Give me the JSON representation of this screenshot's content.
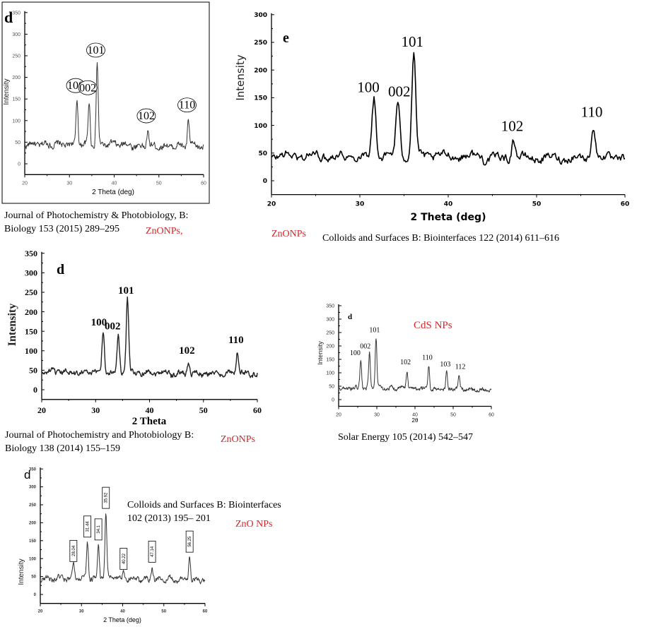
{
  "chart_data": [
    {
      "id": "A",
      "type": "line",
      "panel_letter": "d",
      "xlabel": "2 Theta (deg)",
      "ylabel": "Intensity",
      "xlim": [
        20,
        60
      ],
      "ylim": [
        -25,
        350
      ],
      "xticks": [
        20,
        30,
        40,
        50,
        60
      ],
      "yticks": [
        0,
        50,
        100,
        150,
        200,
        250,
        300,
        350
      ],
      "baseline": 45,
      "peaks": [
        {
          "x": 31.7,
          "y": 150,
          "label": "100"
        },
        {
          "x": 34.4,
          "y": 145,
          "label": "002"
        },
        {
          "x": 36.2,
          "y": 232,
          "label": "101"
        },
        {
          "x": 47.5,
          "y": 80,
          "label": "102"
        },
        {
          "x": 56.6,
          "y": 105,
          "label": "110"
        }
      ],
      "caption": [
        "Journal of Photochemistry & Photobiology, B:",
        "Biology 153 (2015) 289–295"
      ],
      "material": "ZnONPs,"
    },
    {
      "id": "B",
      "type": "line",
      "panel_letter": "e",
      "xlabel": "2 Theta (deg)",
      "ylabel": "Intensity",
      "xlim": [
        20,
        60
      ],
      "ylim": [
        -25,
        300
      ],
      "xticks": [
        20,
        30,
        40,
        50,
        60
      ],
      "yticks": [
        0,
        50,
        100,
        150,
        200,
        250,
        300
      ],
      "baseline": 45,
      "peaks": [
        {
          "x": 31.6,
          "y": 150,
          "label": "100"
        },
        {
          "x": 34.3,
          "y": 142,
          "label": "002"
        },
        {
          "x": 36.1,
          "y": 232,
          "label": "101"
        },
        {
          "x": 47.4,
          "y": 80,
          "label": "102"
        },
        {
          "x": 56.4,
          "y": 105,
          "label": "110"
        }
      ],
      "caption": [
        "Colloids and Surfaces B: Biointerfaces 122 (2014) 611–616"
      ],
      "material": "ZnONPs"
    },
    {
      "id": "C",
      "type": "line",
      "panel_letter": "d",
      "xlabel": "2 Theta",
      "ylabel": "Intensity",
      "xlim": [
        20,
        60
      ],
      "ylim": [
        -25,
        350
      ],
      "xticks": [
        20,
        30,
        40,
        50,
        60
      ],
      "yticks": [
        0,
        50,
        100,
        150,
        200,
        250,
        300,
        350
      ],
      "baseline": 45,
      "peaks": [
        {
          "x": 31.4,
          "y": 150,
          "label": "100"
        },
        {
          "x": 34.2,
          "y": 140,
          "label": "002"
        },
        {
          "x": 35.9,
          "y": 232,
          "label": "101"
        },
        {
          "x": 47.2,
          "y": 78,
          "label": "102"
        },
        {
          "x": 56.3,
          "y": 105,
          "label": "110"
        }
      ],
      "caption": [
        "Journal of Photochemistry and Photobiology B:",
        "Biology 138 (2014) 155–159"
      ],
      "material": "ZnONPs"
    },
    {
      "id": "D",
      "type": "line",
      "panel_letter": "d",
      "xlabel": "2θ",
      "ylabel": "Intensity",
      "xlim": [
        20,
        60
      ],
      "ylim": [
        -25,
        350
      ],
      "xticks": [
        20,
        30,
        40,
        50,
        60
      ],
      "yticks": [
        0,
        50,
        100,
        150,
        200,
        250,
        300,
        350
      ],
      "baseline": 42,
      "peaks": [
        {
          "x": 25.8,
          "y": 145,
          "label": "100"
        },
        {
          "x": 28.1,
          "y": 170,
          "label": "002"
        },
        {
          "x": 29.8,
          "y": 230,
          "label": "101"
        },
        {
          "x": 37.9,
          "y": 110,
          "label": "102"
        },
        {
          "x": 43.6,
          "y": 128,
          "label": "110"
        },
        {
          "x": 48.3,
          "y": 103,
          "label": "103"
        },
        {
          "x": 51.5,
          "y": 93,
          "label": "112"
        }
      ],
      "caption": [
        "Solar Energy 105 (2014) 542–547"
      ],
      "material": "CdS NPs"
    },
    {
      "id": "E",
      "type": "line",
      "panel_letter": "d",
      "xlabel": "2 Theta (deg)",
      "ylabel": "Intensity",
      "xlim": [
        20,
        60
      ],
      "ylim": [
        -25,
        350
      ],
      "xticks": [
        20,
        30,
        40,
        50,
        60
      ],
      "yticks": [
        0,
        50,
        100,
        150,
        200,
        250,
        300,
        350
      ],
      "baseline": 45,
      "peaks": [
        {
          "x": 28.04,
          "y": 82,
          "label": "28.04"
        },
        {
          "x": 31.44,
          "y": 150,
          "label": "31.44"
        },
        {
          "x": 34.1,
          "y": 142,
          "label": "34.1"
        },
        {
          "x": 35.92,
          "y": 230,
          "label": "35.92"
        },
        {
          "x": 40.22,
          "y": 60,
          "label": "40.22"
        },
        {
          "x": 47.14,
          "y": 80,
          "label": "47.14"
        },
        {
          "x": 56.25,
          "y": 108,
          "label": "56.25"
        }
      ],
      "caption": [
        "Colloids and Surfaces B: Biointerfaces",
        "102 (2013) 195– 201"
      ],
      "material": "ZnO NPs"
    }
  ]
}
